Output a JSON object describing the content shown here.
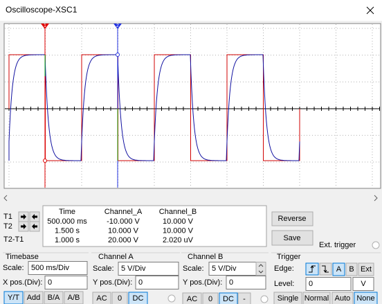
{
  "window": {
    "title": "Oscilloscope-XSC1"
  },
  "screen": {
    "cursor_labels": [
      "1",
      "2"
    ]
  },
  "readout": {
    "row_labels": [
      "T1",
      "T2",
      "T2-T1"
    ],
    "columns": [
      "Time",
      "Channel_A",
      "Channel_B"
    ],
    "rows": [
      [
        "500.000 ms",
        "-10.000 V",
        "10.000 V"
      ],
      [
        "1.500 s",
        "10.000 V",
        "10.000 V"
      ],
      [
        "1.000 s",
        "20.000 V",
        "2.020 uV"
      ]
    ]
  },
  "buttons": {
    "reverse": "Reverse",
    "save": "Save"
  },
  "ext_trigger": "Ext. trigger",
  "timebase": {
    "title": "Timebase",
    "scale_label": "Scale:",
    "scale": "500 ms/Div",
    "xpos_label": "X pos.(Div):",
    "xpos": "0",
    "modes": [
      "Y/T",
      "Add",
      "B/A",
      "A/B"
    ]
  },
  "channel_a": {
    "title": "Channel A",
    "scale_label": "Scale:",
    "scale": "5 V/Div",
    "ypos_label": "Y pos.(Div):",
    "ypos": "0",
    "coupling": [
      "AC",
      "0",
      "DC"
    ]
  },
  "channel_b": {
    "title": "Channel B",
    "scale_label": "Scale:",
    "scale": "5 V/Div",
    "ypos_label": "Y pos.(Div):",
    "ypos": "0",
    "coupling": [
      "AC",
      "0",
      "DC",
      "-"
    ]
  },
  "trigger": {
    "title": "Trigger",
    "edge_label": "Edge:",
    "sources": [
      "A",
      "B",
      "Ext"
    ],
    "level_label": "Level:",
    "level": "0",
    "level_unit": "V",
    "modes": [
      "Single",
      "Normal",
      "Auto",
      "None"
    ]
  }
}
